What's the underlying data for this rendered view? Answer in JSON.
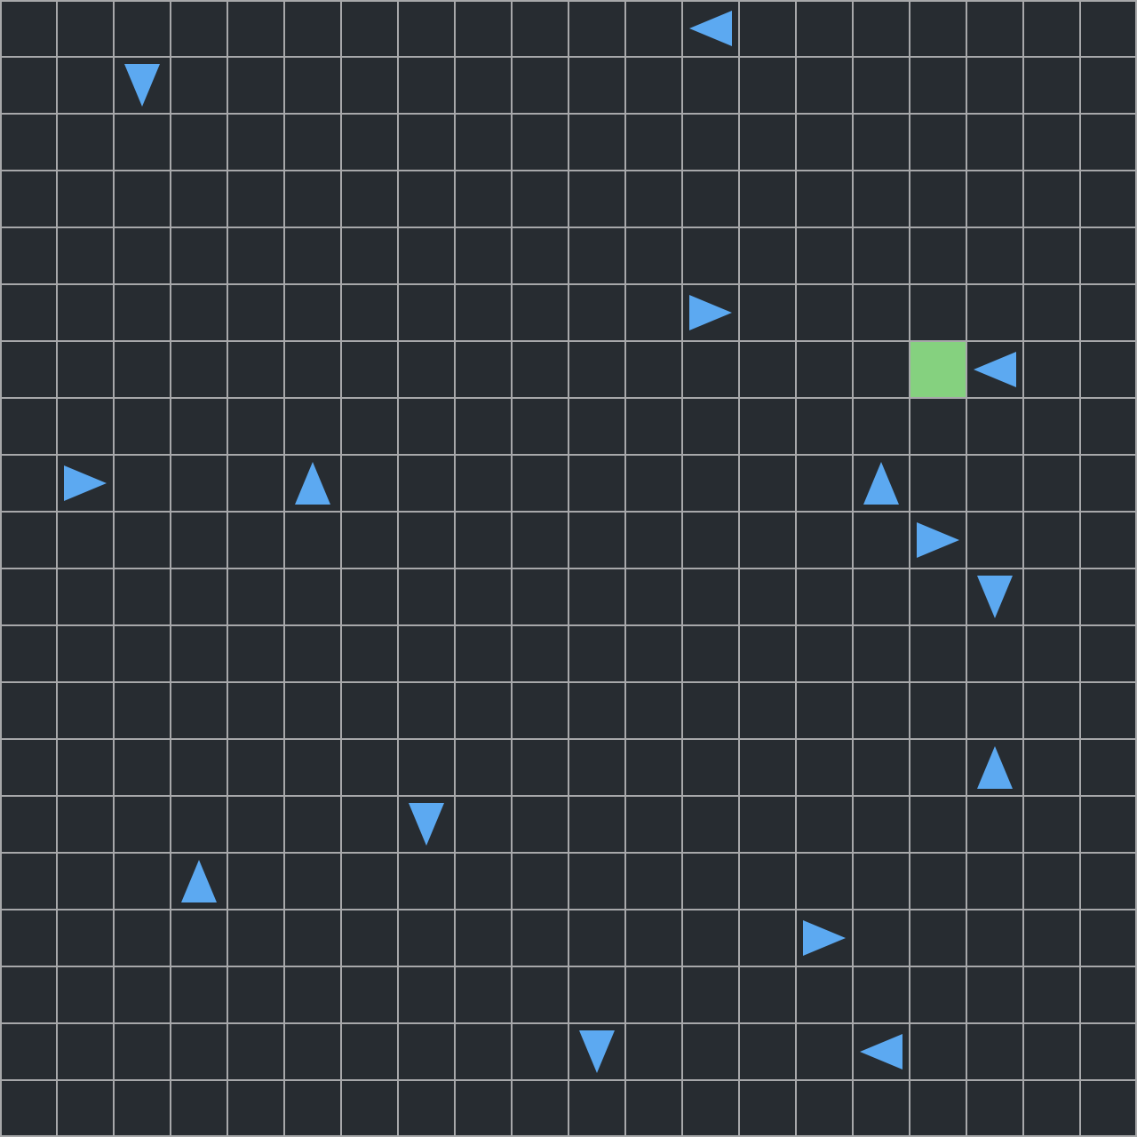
{
  "board": {
    "columns": 20,
    "rows": 20,
    "colors": {
      "background": "#272c31",
      "grid_line": "#a7a8aa",
      "arrow": "#5ca9f1",
      "goal": "#85d17f"
    },
    "goal": {
      "col": 16,
      "row": 6,
      "icon": "green-goal-tile"
    },
    "arrows": [
      {
        "col": 12,
        "row": 0,
        "direction": "left",
        "icon": "arrow-left-icon"
      },
      {
        "col": 2,
        "row": 1,
        "direction": "down",
        "icon": "arrow-down-icon"
      },
      {
        "col": 12,
        "row": 5,
        "direction": "right",
        "icon": "arrow-right-icon"
      },
      {
        "col": 17,
        "row": 6,
        "direction": "left",
        "icon": "arrow-left-icon"
      },
      {
        "col": 1,
        "row": 8,
        "direction": "right",
        "icon": "arrow-right-icon"
      },
      {
        "col": 5,
        "row": 8,
        "direction": "up",
        "icon": "arrow-up-icon"
      },
      {
        "col": 15,
        "row": 8,
        "direction": "up",
        "icon": "arrow-up-icon"
      },
      {
        "col": 16,
        "row": 9,
        "direction": "right",
        "icon": "arrow-right-icon"
      },
      {
        "col": 17,
        "row": 10,
        "direction": "down",
        "icon": "arrow-down-icon"
      },
      {
        "col": 17,
        "row": 13,
        "direction": "up",
        "icon": "arrow-up-icon"
      },
      {
        "col": 7,
        "row": 14,
        "direction": "down",
        "icon": "arrow-down-icon"
      },
      {
        "col": 3,
        "row": 15,
        "direction": "up",
        "icon": "arrow-up-icon"
      },
      {
        "col": 14,
        "row": 16,
        "direction": "right",
        "icon": "arrow-right-icon"
      },
      {
        "col": 10,
        "row": 18,
        "direction": "down",
        "icon": "arrow-down-icon"
      },
      {
        "col": 15,
        "row": 18,
        "direction": "left",
        "icon": "arrow-left-icon"
      }
    ]
  }
}
